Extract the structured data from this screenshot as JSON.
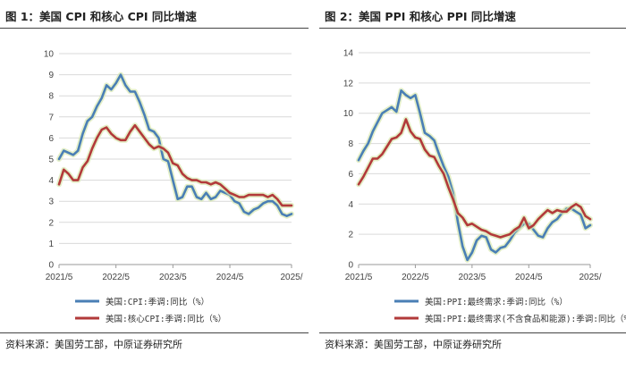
{
  "panels": [
    {
      "title": "图 1：美国 CPI 和核心 CPI 同比增速",
      "source": "资料来源：美国劳工部，中原证券研究所"
    },
    {
      "title": "图 2：美国 PPI 和核心 PPI 同比增速",
      "source": "资料来源：美国劳工部，中原证券研究所"
    }
  ],
  "chart_data": [
    {
      "type": "line",
      "title": "美国 CPI 和核心 CPI 同比增速",
      "ylim": [
        0,
        10
      ],
      "yticks": [
        "0",
        "1",
        "2",
        "3",
        "4",
        "5",
        "6",
        "7",
        "8",
        "9",
        "10"
      ],
      "xticks": [
        "2021/5",
        "2022/5",
        "2023/5",
        "2024/5",
        "2025/"
      ],
      "grid": "horizontal",
      "legend": "bottom",
      "series": [
        {
          "name": "美国:CPI:季调:同比（%）",
          "color": "#4a7fb5",
          "values": [
            5.0,
            5.4,
            5.3,
            5.2,
            5.4,
            6.2,
            6.8,
            7.0,
            7.5,
            7.9,
            8.5,
            8.3,
            8.6,
            9.0,
            8.5,
            8.2,
            8.2,
            7.7,
            7.1,
            6.4,
            6.3,
            6.0,
            5.0,
            4.9,
            4.0,
            3.1,
            3.2,
            3.7,
            3.7,
            3.2,
            3.1,
            3.4,
            3.1,
            3.2,
            3.5,
            3.4,
            3.3,
            3.0,
            2.9,
            2.5,
            2.4,
            2.6,
            2.7,
            2.9,
            3.0,
            3.0,
            2.8,
            2.4,
            2.3,
            2.4
          ]
        },
        {
          "name": "美国:核心CPI:季调:同比（%）",
          "color": "#b23a3a",
          "values": [
            3.8,
            4.5,
            4.3,
            4.0,
            4.0,
            4.6,
            4.9,
            5.5,
            6.0,
            6.4,
            6.5,
            6.2,
            6.0,
            5.9,
            5.9,
            6.3,
            6.6,
            6.3,
            6.0,
            5.7,
            5.5,
            5.6,
            5.5,
            5.3,
            4.8,
            4.7,
            4.3,
            4.1,
            4.0,
            4.0,
            3.9,
            3.9,
            3.8,
            3.9,
            3.8,
            3.6,
            3.4,
            3.3,
            3.2,
            3.2,
            3.3,
            3.3,
            3.3,
            3.3,
            3.2,
            3.3,
            3.1,
            2.8,
            2.8,
            2.8
          ]
        }
      ]
    },
    {
      "type": "line",
      "title": "美国 PPI 和核心 PPI 同比增速",
      "ylim": [
        0,
        14
      ],
      "yticks": [
        "0",
        "2",
        "4",
        "6",
        "8",
        "10",
        "12",
        "14"
      ],
      "xticks": [
        "2021/5",
        "2022/5",
        "2023/5",
        "2024/5",
        "2025/"
      ],
      "grid": "horizontal",
      "legend": "bottom",
      "series": [
        {
          "name": "美国:PPI:最终需求:季调:同比（%）",
          "color": "#4a7fb5",
          "values": [
            6.9,
            7.5,
            8.0,
            8.8,
            9.4,
            10.0,
            10.2,
            10.4,
            10.1,
            11.5,
            11.2,
            11.0,
            11.2,
            10.0,
            8.7,
            8.5,
            8.2,
            7.3,
            6.5,
            5.8,
            4.7,
            2.8,
            1.2,
            0.3,
            0.8,
            1.6,
            1.9,
            1.8,
            1.0,
            0.8,
            1.1,
            1.2,
            1.6,
            2.1,
            2.4,
            2.7,
            2.7,
            2.3,
            1.9,
            1.8,
            2.4,
            2.8,
            3.0,
            3.4,
            3.7,
            3.7,
            3.5,
            3.3,
            2.4,
            2.6
          ]
        },
        {
          "name": "美国:PPI:最终需求(不含食品和能源):季调:同比（%）",
          "color": "#b23a3a",
          "values": [
            5.3,
            5.8,
            6.4,
            7.0,
            7.0,
            7.3,
            7.8,
            8.3,
            8.4,
            8.7,
            9.6,
            8.8,
            8.4,
            8.3,
            7.6,
            7.2,
            7.1,
            6.5,
            6.0,
            5.1,
            4.3,
            3.4,
            3.1,
            2.6,
            2.7,
            2.5,
            2.3,
            2.2,
            2.0,
            1.9,
            1.8,
            1.9,
            2.0,
            2.3,
            2.5,
            3.1,
            2.4,
            2.6,
            3.0,
            3.3,
            3.6,
            3.4,
            3.6,
            3.5,
            3.5,
            3.8,
            4.0,
            3.8,
            3.2,
            3.0
          ]
        }
      ]
    }
  ]
}
